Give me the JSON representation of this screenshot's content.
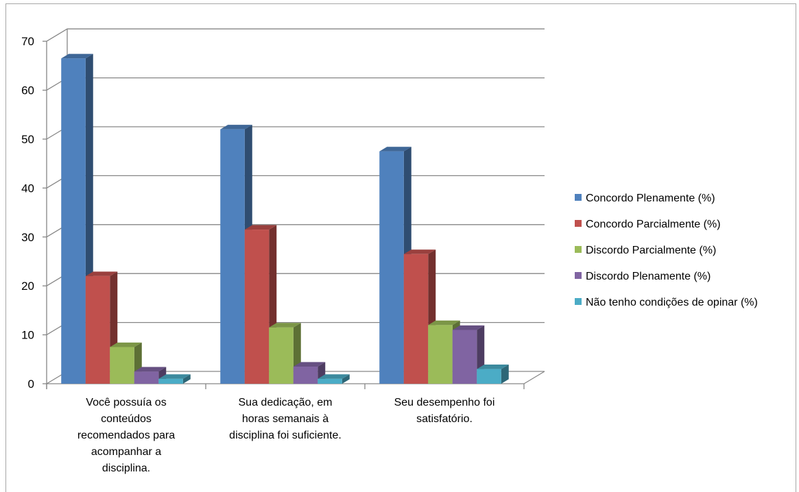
{
  "chart_data": {
    "type": "bar",
    "subtype": "3d-clustered-column",
    "title": "",
    "xlabel": "",
    "ylabel": "",
    "ylim": [
      0,
      70
    ],
    "yticks": [
      0,
      10,
      20,
      30,
      40,
      50,
      60,
      70
    ],
    "grid": true,
    "legend_position": "right",
    "categories": [
      [
        "Você possuía os",
        "conteúdos",
        "recomendados para",
        "acompanhar a",
        "disciplina."
      ],
      [
        "Sua dedicação, em",
        "horas semanais à",
        "disciplina foi suficiente."
      ],
      [
        "Seu desempenho foi",
        "satisfatório."
      ]
    ],
    "series": [
      {
        "name": "Concordo Plenamente (%)",
        "values": [
          66.5,
          52,
          47.5
        ],
        "color": "#4f81bd"
      },
      {
        "name": "Concordo Parcialmente (%)",
        "values": [
          22,
          31.5,
          26.5
        ],
        "color": "#c0504d"
      },
      {
        "name": "Discordo Parcialmente (%)",
        "values": [
          7.5,
          11.5,
          12
        ],
        "color": "#9bbb59"
      },
      {
        "name": "Discordo Plenamente (%)",
        "values": [
          2.5,
          3.5,
          11
        ],
        "color": "#8064a2"
      },
      {
        "name": "Não tenho condições de opinar (%)",
        "values": [
          1,
          1,
          3
        ],
        "color": "#4bacc6"
      }
    ]
  }
}
